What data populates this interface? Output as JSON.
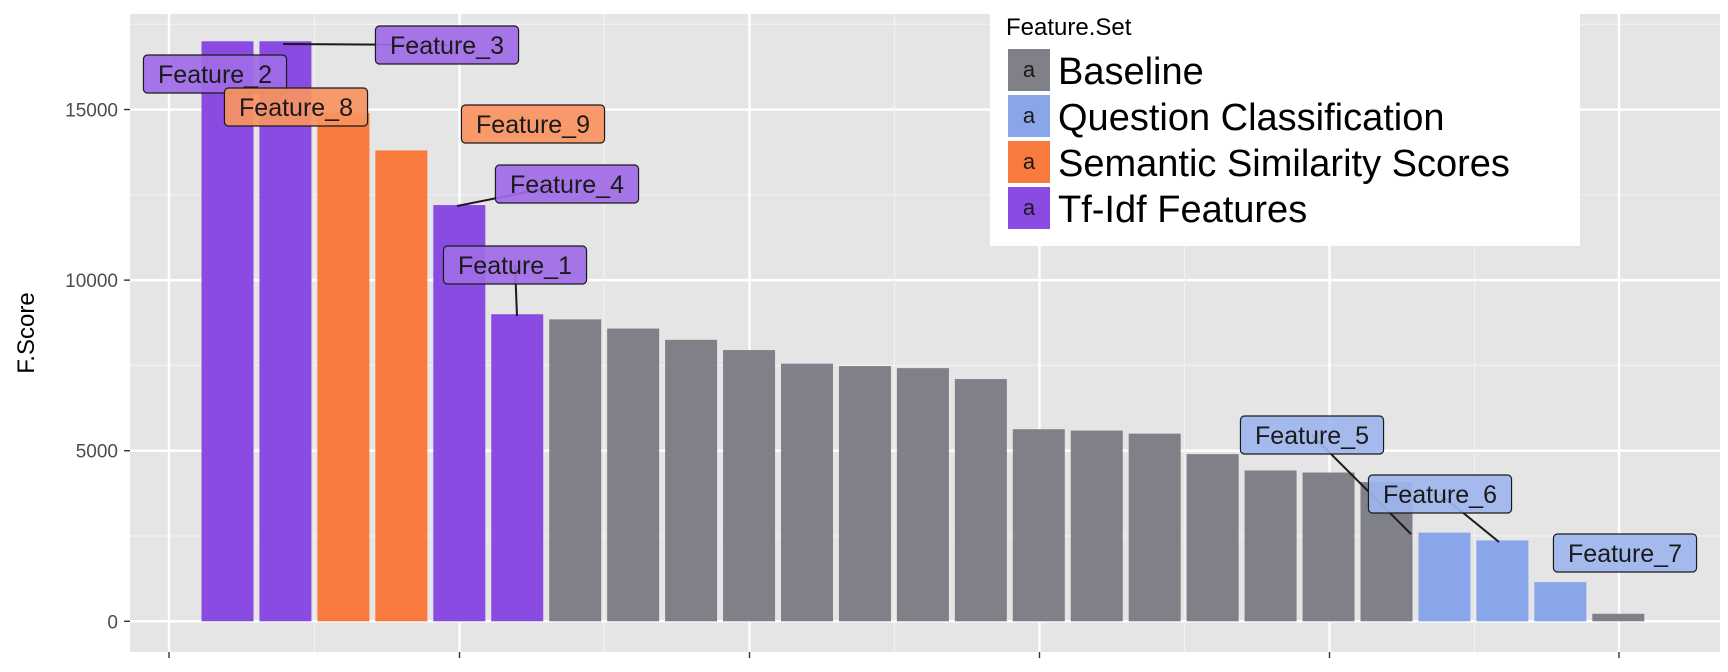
{
  "chart_data": {
    "type": "bar",
    "title": "",
    "xlabel": "",
    "ylabel": "F.Score",
    "ylim": [
      -900,
      17800
    ],
    "yticks": [
      0,
      5000,
      10000,
      15000
    ],
    "ytick_labels": [
      "0",
      "5000",
      "10000",
      "15000"
    ],
    "grid": true,
    "legend": {
      "title": "Feature.Set",
      "placement": "top-right",
      "key_glyph": "a",
      "entries": [
        {
          "name": "Baseline",
          "color": "#808089"
        },
        {
          "name": "Question Classification",
          "color": "#89a6ea"
        },
        {
          "name": "Semantic Similarity Scores",
          "color": "#f87a3c"
        },
        {
          "name": "Tf-Idf Features",
          "color": "#8a4be2"
        }
      ]
    },
    "bars": [
      {
        "value": 17000,
        "group": "Tf-Idf Features"
      },
      {
        "value": 17000,
        "group": "Tf-Idf Features"
      },
      {
        "value": 14900,
        "group": "Semantic Similarity Scores"
      },
      {
        "value": 13800,
        "group": "Semantic Similarity Scores"
      },
      {
        "value": 12200,
        "group": "Tf-Idf Features"
      },
      {
        "value": 9000,
        "group": "Tf-Idf Features"
      },
      {
        "value": 8850,
        "group": "Baseline"
      },
      {
        "value": 8580,
        "group": "Baseline"
      },
      {
        "value": 8250,
        "group": "Baseline"
      },
      {
        "value": 7950,
        "group": "Baseline"
      },
      {
        "value": 7550,
        "group": "Baseline"
      },
      {
        "value": 7480,
        "group": "Baseline"
      },
      {
        "value": 7420,
        "group": "Baseline"
      },
      {
        "value": 7100,
        "group": "Baseline"
      },
      {
        "value": 5630,
        "group": "Baseline"
      },
      {
        "value": 5590,
        "group": "Baseline"
      },
      {
        "value": 5500,
        "group": "Baseline"
      },
      {
        "value": 4900,
        "group": "Baseline"
      },
      {
        "value": 4420,
        "group": "Baseline"
      },
      {
        "value": 4360,
        "group": "Baseline"
      },
      {
        "value": 4080,
        "group": "Baseline"
      },
      {
        "value": 2600,
        "group": "Question Classification"
      },
      {
        "value": 2370,
        "group": "Question Classification"
      },
      {
        "value": 1150,
        "group": "Question Classification"
      },
      {
        "value": 220,
        "group": "Baseline"
      }
    ],
    "annotations": [
      {
        "label": "Feature_2",
        "bar": 0,
        "group": "Tf-Idf Features"
      },
      {
        "label": "Feature_3",
        "bar": 1,
        "group": "Tf-Idf Features"
      },
      {
        "label": "Feature_8",
        "bar": 2,
        "group": "Semantic Similarity Scores"
      },
      {
        "label": "Feature_9",
        "bar": 3,
        "group": "Semantic Similarity Scores"
      },
      {
        "label": "Feature_4",
        "bar": 4,
        "group": "Tf-Idf Features"
      },
      {
        "label": "Feature_1",
        "bar": 5,
        "group": "Tf-Idf Features"
      },
      {
        "label": "Feature_5",
        "bar": 21,
        "group": "Question Classification"
      },
      {
        "label": "Feature_6",
        "bar": 22,
        "group": "Question Classification"
      },
      {
        "label": "Feature_7",
        "bar": 23,
        "group": "Question Classification"
      }
    ]
  }
}
